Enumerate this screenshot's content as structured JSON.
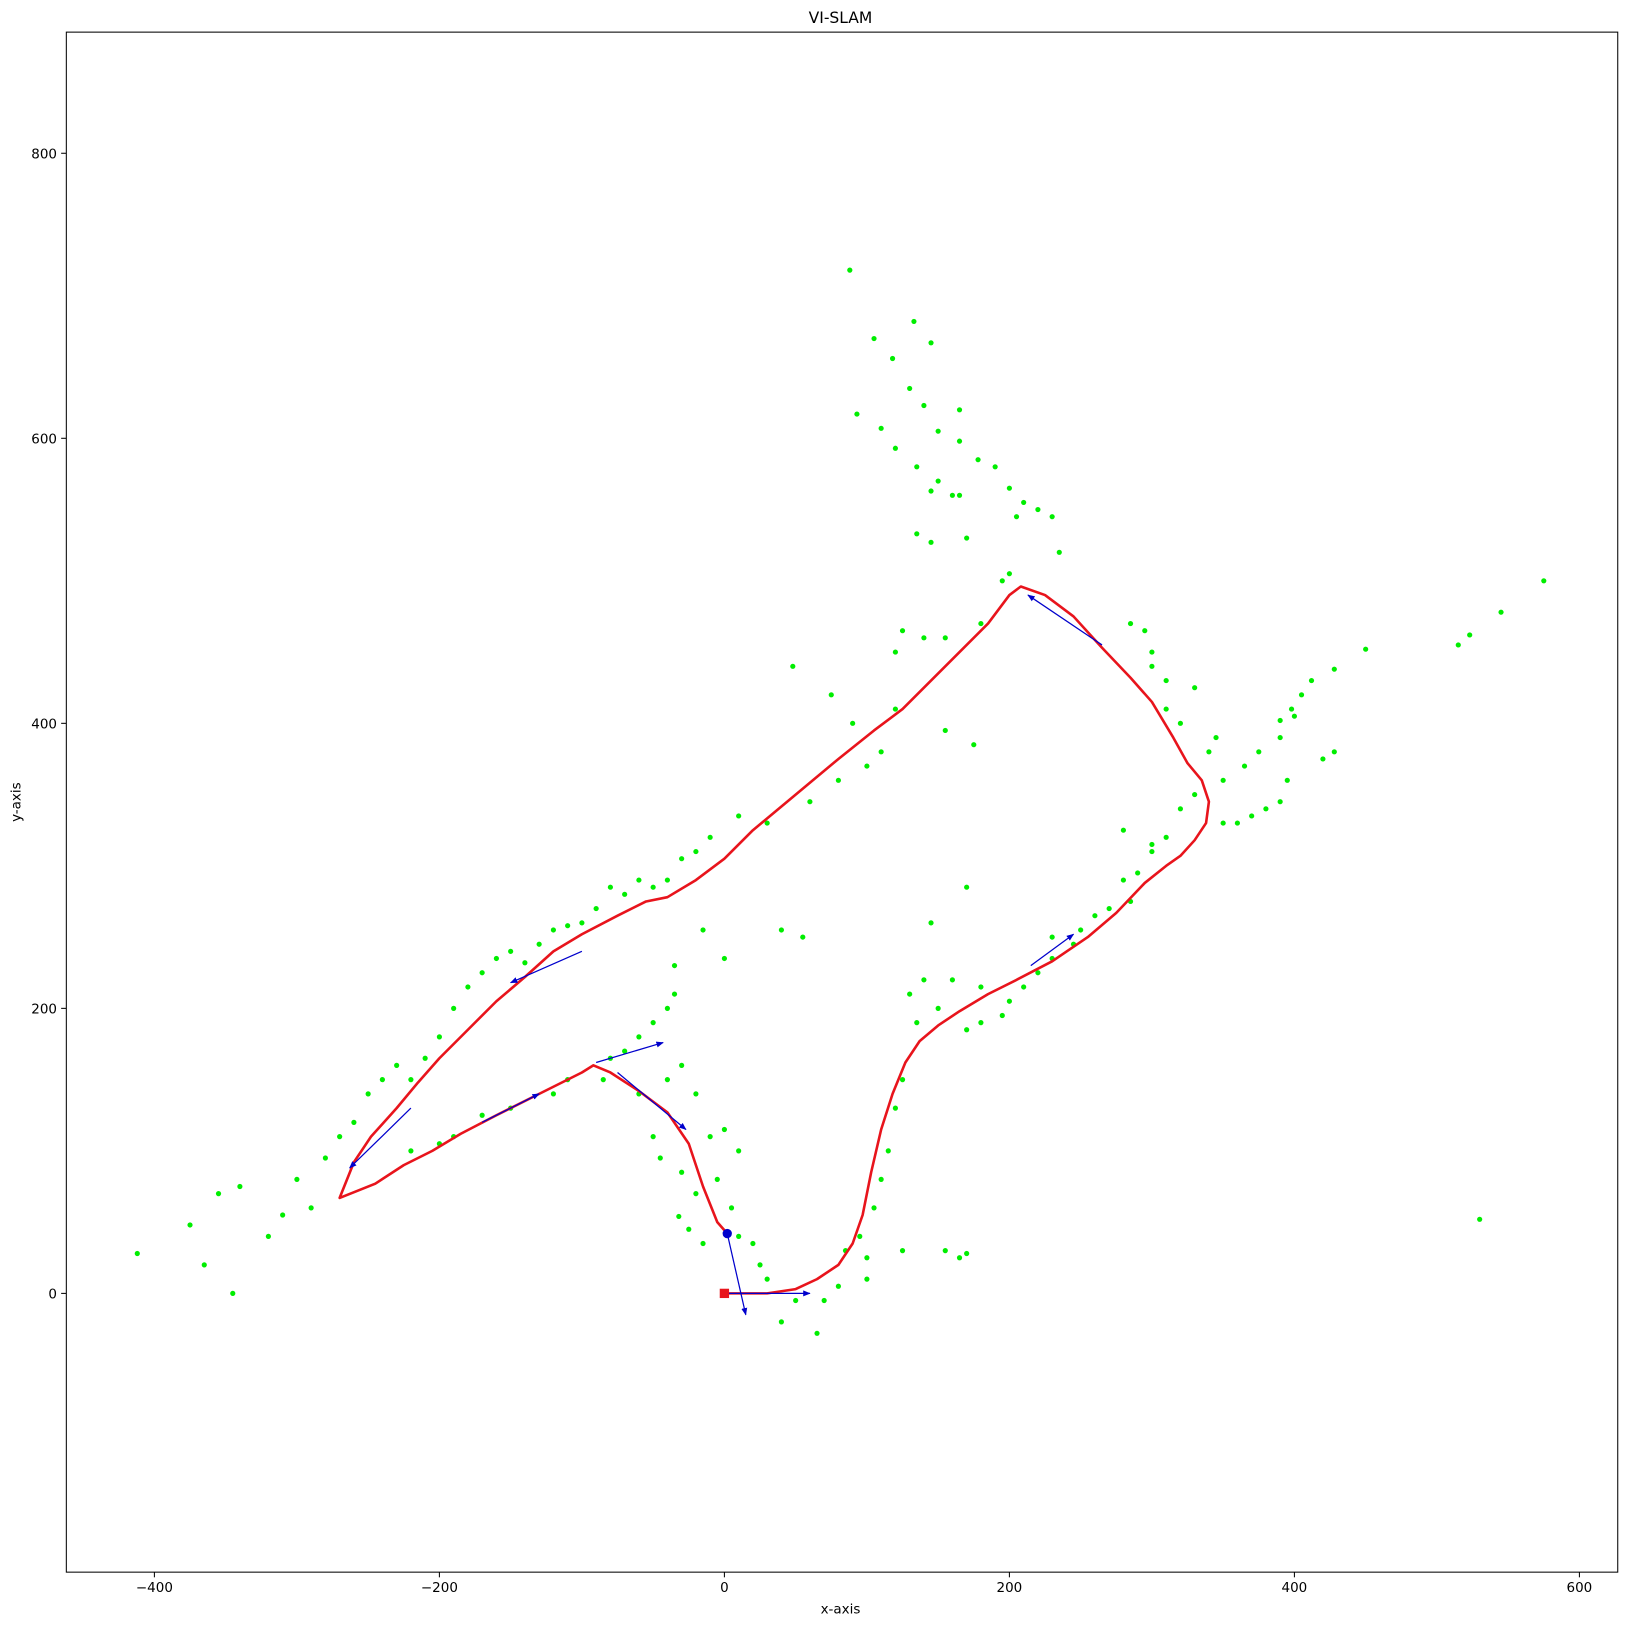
{
  "chart_data": {
    "type": "scatter",
    "title": "VI-SLAM",
    "x_label": "x-axis",
    "y_label": "y-axis",
    "xlim": [
      -461.8,
      626.9
    ],
    "ylim": [
      -195.6,
      885
    ],
    "xticks": [
      {
        "value": -400,
        "label": "−400"
      },
      {
        "value": -200,
        "label": "−200"
      },
      0,
      200,
      400,
      600
    ],
    "yticks": [
      0,
      200,
      400,
      600,
      800
    ],
    "grid": false,
    "trajectory": {
      "color": "#e8141c",
      "x": [
        0,
        30,
        50,
        65,
        80,
        90,
        97,
        103,
        110,
        118,
        127,
        137,
        150,
        165,
        185,
        205,
        230,
        255,
        275,
        295,
        310,
        320,
        330,
        338,
        340,
        335,
        325,
        315,
        300,
        285,
        265,
        245,
        225,
        208,
        200,
        185,
        165,
        145,
        125,
        105,
        80,
        50,
        20,
        0,
        -20,
        -40,
        -55,
        -75,
        -100,
        -120,
        -140,
        -160,
        -180,
        -200,
        -215,
        -230,
        -248,
        -260,
        -270,
        -245,
        -225,
        -205,
        -185,
        -160,
        -130,
        -100,
        -92,
        -80,
        -60,
        -40,
        -25,
        -15,
        -5,
        2
      ],
      "y": [
        0,
        0,
        3,
        10,
        20,
        35,
        55,
        85,
        115,
        140,
        162,
        177,
        188,
        198,
        210,
        220,
        233,
        250,
        267,
        288,
        300,
        307,
        318,
        330,
        345,
        360,
        372,
        390,
        415,
        432,
        453,
        475,
        490,
        496,
        490,
        470,
        450,
        430,
        410,
        395,
        375,
        350,
        325,
        305,
        290,
        278,
        275,
        265,
        252,
        240,
        222,
        205,
        185,
        165,
        148,
        130,
        110,
        92,
        67,
        77,
        90,
        100,
        112,
        125,
        140,
        155,
        160,
        155,
        142,
        127,
        105,
        75,
        50,
        42
      ]
    },
    "landmarks": {
      "color": "#00ee00",
      "x": [
        88,
        105,
        133,
        145,
        118,
        130,
        140,
        165,
        93,
        110,
        150,
        165,
        120,
        135,
        150,
        145,
        165,
        178,
        190,
        200,
        210,
        205,
        220,
        230,
        235,
        135,
        145,
        160,
        170,
        48,
        75,
        90,
        120,
        125,
        140,
        155,
        180,
        195,
        200,
        175,
        155,
        170,
        145,
        40,
        55,
        -15,
        0,
        -35,
        575,
        545,
        523,
        515,
        450,
        428,
        412,
        405,
        398,
        390,
        400,
        390,
        420,
        428,
        395,
        390,
        380,
        370,
        360,
        350,
        375,
        365,
        340,
        320,
        310,
        300,
        295,
        285,
        300,
        310,
        330,
        345,
        350,
        330,
        320,
        310,
        300,
        290,
        280,
        285,
        270,
        260,
        245,
        230,
        220,
        210,
        200,
        195,
        180,
        170,
        150,
        135,
        130,
        140,
        160,
        180,
        230,
        250,
        280,
        300,
        530,
        -412,
        -375,
        -365,
        -345,
        -355,
        -340,
        -320,
        -310,
        -300,
        -290,
        -280,
        -270,
        -260,
        -250,
        -240,
        -230,
        -220,
        -210,
        -200,
        -190,
        -180,
        -170,
        -160,
        -150,
        -140,
        -130,
        -120,
        -110,
        -100,
        -90,
        -80,
        -70,
        -60,
        -50,
        -40,
        -30,
        -20,
        -10,
        10,
        30,
        60,
        80,
        100,
        110,
        120,
        -220,
        -200,
        -190,
        -170,
        -150,
        -120,
        -110,
        -80,
        -70,
        -60,
        -50,
        -40,
        -35,
        -30,
        -20,
        -40,
        -50,
        -45,
        -30,
        -20,
        -10,
        0,
        10,
        -5,
        5,
        10,
        20,
        25,
        30,
        40,
        50,
        65,
        70,
        80,
        85,
        95,
        100,
        105,
        110,
        115,
        120,
        125,
        100,
        125,
        155,
        165,
        170,
        -60,
        -85,
        -15,
        -25,
        -32
      ],
      "y": [
        718,
        670,
        682,
        667,
        656,
        635,
        623,
        620,
        617,
        607,
        605,
        598,
        593,
        580,
        570,
        563,
        560,
        585,
        580,
        565,
        555,
        545,
        550,
        545,
        520,
        533,
        527,
        560,
        530,
        440,
        420,
        400,
        450,
        465,
        460,
        460,
        470,
        500,
        505,
        385,
        395,
        285,
        260,
        255,
        250,
        255,
        235,
        230,
        500,
        478,
        462,
        455,
        452,
        438,
        430,
        420,
        410,
        402,
        405,
        390,
        375,
        380,
        360,
        345,
        340,
        335,
        330,
        330,
        380,
        370,
        380,
        400,
        410,
        440,
        465,
        470,
        450,
        430,
        425,
        390,
        360,
        350,
        340,
        320,
        310,
        295,
        290,
        275,
        270,
        265,
        245,
        235,
        225,
        215,
        205,
        195,
        190,
        185,
        200,
        190,
        210,
        220,
        220,
        215,
        250,
        255,
        325,
        315,
        52,
        28,
        48,
        20,
        0,
        70,
        75,
        40,
        55,
        80,
        60,
        95,
        110,
        120,
        140,
        150,
        160,
        150,
        165,
        180,
        200,
        215,
        225,
        235,
        240,
        232,
        245,
        255,
        258,
        260,
        270,
        285,
        280,
        290,
        285,
        290,
        305,
        310,
        320,
        335,
        330,
        345,
        360,
        370,
        380,
        410,
        100,
        105,
        110,
        125,
        130,
        140,
        150,
        165,
        170,
        180,
        190,
        200,
        210,
        160,
        140,
        150,
        110,
        95,
        85,
        70,
        110,
        115,
        100,
        80,
        60,
        40,
        35,
        20,
        10,
        -20,
        -5,
        -28,
        -5,
        5,
        30,
        40,
        25,
        60,
        80,
        100,
        130,
        150,
        10,
        30,
        30,
        25,
        28,
        140,
        150,
        35,
        45,
        54
      ]
    },
    "arrows": {
      "color": "#0000cc",
      "x0": [
        0,
        2,
        -220,
        -100,
        -170,
        -90,
        -75,
        265,
        215
      ],
      "y0": [
        0,
        42,
        130,
        240,
        120,
        162,
        155,
        455,
        230
      ],
      "x1": [
        60,
        15,
        -263,
        -150,
        -130,
        -43,
        -27,
        213,
        245
      ],
      "y1": [
        0,
        -15,
        88,
        218,
        140,
        176,
        115,
        490,
        252
      ]
    }
  }
}
